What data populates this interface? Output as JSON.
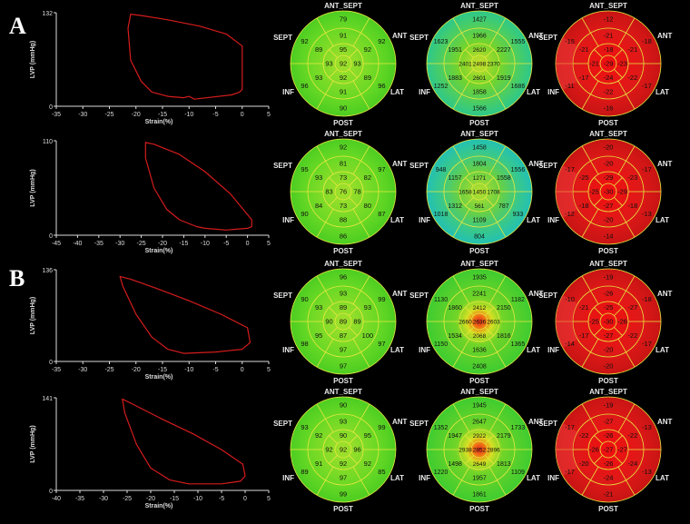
{
  "panels": [
    {
      "label": "A"
    },
    {
      "label": "B"
    }
  ],
  "loop_labels": {
    "ylabel": "LVP (mmHg)",
    "xlabel": "Strain(%)"
  },
  "bullseye_labels": {
    "ant_sept": "ANT_SEPT",
    "ant": "ANT",
    "lat": "LAT",
    "post": "POST",
    "inf": "INF",
    "sept": "SEPT"
  },
  "chart_data": [
    {
      "type": "line",
      "panel": "A",
      "row": 1,
      "ylabel": "LVP (mmHg)",
      "xlabel": "Strain(%)",
      "xlim": [
        -35,
        5
      ],
      "ylim": [
        0,
        132
      ],
      "xticks": [
        -35,
        -30,
        -25,
        -20,
        -15,
        -10,
        -5,
        0,
        5
      ],
      "yticks": [
        0,
        132
      ],
      "series": [
        {
          "x": [
            -10,
            -9,
            -2,
            -0.5,
            0,
            0,
            -3,
            -8,
            -14,
            -19,
            -21,
            -21.5,
            -21,
            -19,
            -17,
            -14,
            -11,
            -10
          ],
          "y": [
            14,
            10,
            16,
            20,
            24,
            85,
            102,
            113,
            122,
            128,
            130,
            110,
            65,
            35,
            20,
            14,
            12,
            14
          ]
        }
      ]
    },
    {
      "type": "line",
      "panel": "A",
      "row": 2,
      "ylabel": "LVP (mmHg)",
      "xlabel": "Strain(%)",
      "xlim": [
        -45,
        5
      ],
      "ylim": [
        0,
        110
      ],
      "xticks": [
        -45,
        -40,
        -35,
        -30,
        -25,
        -20,
        -15,
        -10,
        -5,
        0,
        5
      ],
      "yticks": [
        0,
        110
      ],
      "series": [
        {
          "x": [
            -10,
            -5,
            0,
            1,
            1,
            -4,
            -10,
            -16,
            -22,
            -24,
            -24,
            -22,
            -19,
            -16,
            -12,
            -10
          ],
          "y": [
            8,
            6,
            8,
            10,
            18,
            48,
            74,
            94,
            106,
            108,
            90,
            55,
            30,
            18,
            10,
            8
          ]
        }
      ]
    },
    {
      "type": "line",
      "panel": "B",
      "row": 1,
      "ylabel": "LVP (mmHg)",
      "xlabel": "Strain(%)",
      "xlim": [
        -35,
        5
      ],
      "ylim": [
        0,
        136
      ],
      "xticks": [
        -35,
        -30,
        -25,
        -20,
        -15,
        -10,
        -5,
        0,
        5
      ],
      "yticks": [
        0,
        136
      ],
      "series": [
        {
          "x": [
            -11,
            -5,
            0,
            1.5,
            1,
            -4,
            -10,
            -16,
            -21,
            -23,
            -22.5,
            -20,
            -17,
            -14,
            -11
          ],
          "y": [
            12,
            14,
            18,
            28,
            50,
            70,
            90,
            108,
            122,
            126,
            112,
            70,
            36,
            18,
            12
          ]
        }
      ]
    },
    {
      "type": "line",
      "panel": "B",
      "row": 2,
      "ylabel": "LVP (mmHg)",
      "xlabel": "Strain(%)",
      "xlim": [
        -40,
        5
      ],
      "ylim": [
        0,
        141
      ],
      "xticks": [
        -40,
        -35,
        -30,
        -25,
        -20,
        -15,
        -10,
        -5,
        0,
        5
      ],
      "yticks": [
        0,
        141
      ],
      "series": [
        {
          "x": [
            -12,
            -5,
            -1,
            0,
            -0.5,
            -5,
            -11,
            -18,
            -24,
            -26,
            -25.5,
            -23,
            -20,
            -16,
            -12
          ],
          "y": [
            10,
            10,
            14,
            22,
            40,
            62,
            86,
            110,
            132,
            139,
            118,
            70,
            34,
            16,
            10
          ]
        }
      ]
    }
  ],
  "bullseyes": [
    {
      "row": 1,
      "type": "uniform",
      "values": [
        79,
        92,
        96,
        90,
        96,
        92,
        91,
        92,
        89,
        91,
        93,
        89,
        95,
        93,
        92,
        93,
        92
      ]
    },
    {
      "row": 1,
      "type": "blend",
      "values": [
        1427,
        1555,
        1686,
        1566,
        1252,
        1623,
        1966,
        2227,
        1919,
        1858,
        1883,
        1951,
        2620,
        2370,
        2601,
        2401,
        2498
      ]
    },
    {
      "row": 1,
      "type": "strain",
      "values": [
        -12,
        -18,
        -17,
        -16,
        -11,
        -15,
        -21,
        -21,
        -22,
        -22,
        -17,
        -21,
        -18,
        -23,
        -24,
        -21,
        -29
      ]
    },
    {
      "row": 2,
      "type": "uniform",
      "values": [
        92,
        97,
        87,
        86,
        90,
        95,
        81,
        82,
        80,
        88,
        84,
        93,
        73,
        78,
        73,
        83,
        76
      ]
    },
    {
      "row": 2,
      "type": "blend",
      "values": [
        1458,
        1556,
        933,
        804,
        1018,
        948,
        1804,
        1558,
        787,
        1109,
        1312,
        1157,
        1271,
        1708,
        561,
        1658,
        1450
      ]
    },
    {
      "row": 2,
      "type": "strain",
      "values": [
        -20,
        -17,
        -13,
        -14,
        -12,
        -17,
        -20,
        -23,
        -18,
        -20,
        -18,
        -25,
        -29,
        -29,
        -27,
        -25,
        -30
      ]
    },
    {
      "row": 3,
      "type": "uniform",
      "values": [
        96,
        99,
        97,
        97,
        98,
        90,
        93,
        93,
        100,
        97,
        95,
        93,
        89,
        89,
        87,
        90,
        89
      ]
    },
    {
      "row": 3,
      "type": "blend",
      "values": [
        1935,
        1182,
        1365,
        2408,
        1150,
        1130,
        2241,
        2150,
        1816,
        1636,
        1534,
        1860,
        2412,
        2603,
        2068,
        2660,
        2636
      ]
    },
    {
      "row": 3,
      "type": "strain",
      "values": [
        -19,
        -18,
        -17,
        -20,
        -14,
        -10,
        -26,
        -27,
        -22,
        -20,
        -17,
        -21,
        -25,
        -26,
        -27,
        -25,
        -30
      ]
    },
    {
      "row": 4,
      "type": "uniform",
      "values": [
        90,
        99,
        85,
        99,
        89,
        93,
        93,
        95,
        92,
        97,
        91,
        92,
        90,
        96,
        92,
        92,
        92
      ]
    },
    {
      "row": 4,
      "type": "blend",
      "values": [
        1945,
        1733,
        1109,
        1861,
        1220,
        1352,
        2647,
        2179,
        1813,
        1957,
        1498,
        1947,
        2922,
        2896,
        2649,
        2938,
        2852
      ]
    },
    {
      "row": 4,
      "type": "strain",
      "values": [
        -19,
        -13,
        -13,
        -21,
        -17,
        -17,
        -27,
        -22,
        -24,
        -24,
        -20,
        -22,
        -26,
        -27,
        -26,
        -26,
        -27
      ]
    }
  ]
}
